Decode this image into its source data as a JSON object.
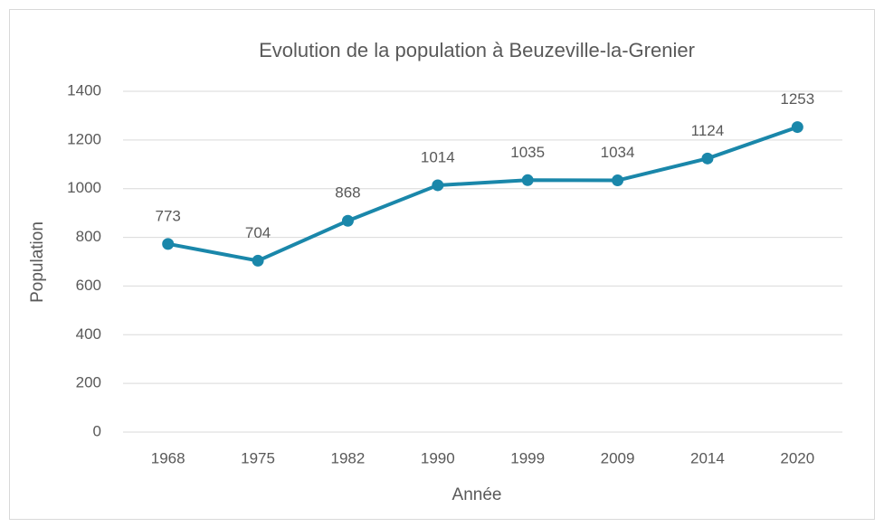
{
  "chart_data": {
    "type": "line",
    "title": "Evolution de la population à Beuzeville-la-Grenier",
    "x_label": "Année",
    "y_label": "Population",
    "categories": [
      "1968",
      "1975",
      "1982",
      "1990",
      "1999",
      "2009",
      "2014",
      "2020"
    ],
    "series": [
      {
        "name": "Population",
        "color": "#1a87aa",
        "values": [
          773,
          704,
          868,
          1014,
          1035,
          1034,
          1124,
          1253
        ]
      }
    ],
    "ylim": [
      0,
      1400
    ],
    "yticks": [
      0,
      200,
      400,
      600,
      800,
      1000,
      1200,
      1400
    ],
    "grid": true
  }
}
